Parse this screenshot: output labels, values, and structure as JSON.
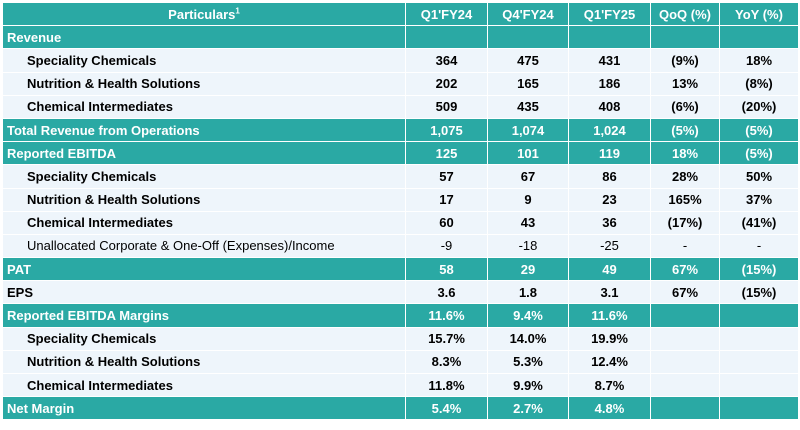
{
  "header": {
    "particulars": "Particulars",
    "footnote": "1",
    "columns": [
      "Q1'FY24",
      "Q4'FY24",
      "Q1'FY25",
      "QoQ (%)",
      "YoY (%)"
    ]
  },
  "rows": [
    {
      "label": "Revenue",
      "values": [
        "",
        "",
        "",
        "",
        ""
      ]
    },
    {
      "label": "Speciality Chemicals",
      "values": [
        "364",
        "475",
        "431",
        "(9%)",
        "18%"
      ]
    },
    {
      "label": "Nutrition & Health Solutions",
      "values": [
        "202",
        "165",
        "186",
        "13%",
        "(8%)"
      ]
    },
    {
      "label": "Chemical Intermediates",
      "values": [
        "509",
        "435",
        "408",
        "(6%)",
        "(20%)"
      ]
    },
    {
      "label": "Total Revenue from Operations",
      "values": [
        "1,075",
        "1,074",
        "1,024",
        "(5%)",
        "(5%)"
      ]
    },
    {
      "label": "Reported EBITDA",
      "values": [
        "125",
        "101",
        "119",
        "18%",
        "(5%)"
      ]
    },
    {
      "label": "Speciality Chemicals",
      "values": [
        "57",
        "67",
        "86",
        "28%",
        "50%"
      ]
    },
    {
      "label": "Nutrition & Health Solutions",
      "values": [
        "17",
        "9",
        "23",
        "165%",
        "37%"
      ]
    },
    {
      "label": "Chemical Intermediates",
      "values": [
        "60",
        "43",
        "36",
        "(17%)",
        "(41%)"
      ]
    },
    {
      "label": "Unallocated Corporate & One-Off  (Expenses)/Income",
      "values": [
        "-9",
        "-18",
        "-25",
        "-",
        "-"
      ]
    },
    {
      "label": "PAT",
      "values": [
        "58",
        "29",
        "49",
        "67%",
        "(15%)"
      ]
    },
    {
      "label": "EPS",
      "values": [
        "3.6",
        "1.8",
        "3.1",
        "67%",
        "(15%)"
      ]
    },
    {
      "label": "Reported EBITDA Margins",
      "values": [
        "11.6%",
        "9.4%",
        "11.6%",
        "",
        ""
      ]
    },
    {
      "label": "Speciality Chemicals",
      "values": [
        "15.7%",
        "14.0%",
        "19.9%",
        "",
        ""
      ]
    },
    {
      "label": "Nutrition & Health Solutions",
      "values": [
        "8.3%",
        "5.3%",
        "12.4%",
        "",
        ""
      ]
    },
    {
      "label": "Chemical Intermediates",
      "values": [
        "11.8%",
        "9.9%",
        "8.7%",
        "",
        ""
      ]
    },
    {
      "label": "Net Margin",
      "values": [
        "5.4%",
        "2.7%",
        "4.8%",
        "",
        ""
      ]
    }
  ]
}
